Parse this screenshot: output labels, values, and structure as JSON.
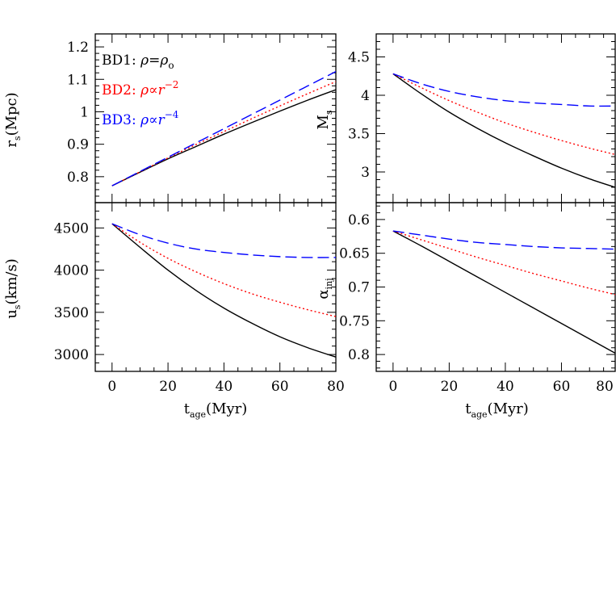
{
  "chart_data": [
    {
      "panel": "top-left",
      "type": "line",
      "ylabel_main": "r",
      "ylabel_sub": "s",
      "ylabel_unit": "(Mpc)",
      "ylim": [
        0.72,
        1.24
      ],
      "yticks": [
        0.8,
        0.9,
        1.0,
        1.1,
        1.2
      ],
      "yticklabels": [
        "0.8",
        "0.9",
        "1",
        "1.1",
        "1.2"
      ],
      "xlim": [
        -6,
        80
      ],
      "series": [
        {
          "name": "BD1",
          "color": "#000000",
          "dash": "solid",
          "x": [
            0,
            10,
            20,
            30,
            40,
            50,
            60,
            70,
            80
          ],
          "y": [
            0.772,
            0.814,
            0.855,
            0.893,
            0.931,
            0.967,
            1.002,
            1.036,
            1.068
          ]
        },
        {
          "name": "BD2",
          "color": "#ff0000",
          "dash": "dotted",
          "x": [
            0,
            10,
            20,
            30,
            40,
            50,
            60,
            70,
            80
          ],
          "y": [
            0.772,
            0.815,
            0.858,
            0.899,
            0.939,
            0.979,
            1.018,
            1.056,
            1.093
          ]
        },
        {
          "name": "BD3",
          "color": "#0000ff",
          "dash": "dashed",
          "x": [
            0,
            10,
            20,
            30,
            40,
            50,
            60,
            70,
            80
          ],
          "y": [
            0.772,
            0.816,
            0.86,
            0.904,
            0.948,
            0.992,
            1.036,
            1.08,
            1.124
          ]
        }
      ],
      "legend": [
        {
          "label": "BD1:",
          "formula": "ρ=ρ",
          "sub": "o",
          "sup": "",
          "color": "#000000"
        },
        {
          "label": "BD2:",
          "formula": "ρ∝r",
          "sub": "",
          "sup": "−2",
          "color": "#ff0000"
        },
        {
          "label": "BD3:",
          "formula": "ρ∝r",
          "sub": "",
          "sup": "−4",
          "color": "#0000ff"
        }
      ]
    },
    {
      "panel": "top-right",
      "type": "line",
      "ylabel_main": "M",
      "ylabel_sub": "s",
      "ylabel_unit": "",
      "ylim": [
        2.6,
        4.8
      ],
      "yticks": [
        3.0,
        3.5,
        4.0,
        4.5
      ],
      "yticklabels": [
        "3",
        "3.5",
        "4",
        "4.5"
      ],
      "xlim": [
        -6,
        80
      ],
      "series": [
        {
          "name": "BD1",
          "color": "#000000",
          "dash": "solid",
          "x": [
            0,
            10,
            20,
            30,
            40,
            50,
            60,
            70,
            80
          ],
          "y": [
            4.28,
            4.02,
            3.78,
            3.57,
            3.38,
            3.21,
            3.05,
            2.91,
            2.79
          ]
        },
        {
          "name": "BD2",
          "color": "#ff0000",
          "dash": "dotted",
          "x": [
            0,
            10,
            20,
            30,
            40,
            50,
            60,
            70,
            80
          ],
          "y": [
            4.28,
            4.1,
            3.93,
            3.78,
            3.64,
            3.52,
            3.41,
            3.31,
            3.22
          ]
        },
        {
          "name": "BD3",
          "color": "#0000ff",
          "dash": "dashed",
          "x": [
            0,
            10,
            20,
            30,
            40,
            50,
            60,
            70,
            80
          ],
          "y": [
            4.28,
            4.15,
            4.05,
            3.98,
            3.93,
            3.9,
            3.88,
            3.86,
            3.86
          ]
        }
      ]
    },
    {
      "panel": "bottom-left",
      "type": "line",
      "ylabel_main": "u",
      "ylabel_sub": "s",
      "ylabel_unit": "(km/s)",
      "ylim": [
        2800,
        4800
      ],
      "yticks": [
        3000,
        3500,
        4000,
        4500
      ],
      "yticklabels": [
        "3000",
        "3500",
        "4000",
        "4500"
      ],
      "xlim": [
        -6,
        80
      ],
      "xticks": [
        0,
        20,
        40,
        60,
        80
      ],
      "xticklabels": [
        "0",
        "20",
        "40",
        "60",
        "80"
      ],
      "xlabel_main": "t",
      "xlabel_sub": "age",
      "xlabel_unit": "(Myr)",
      "series": [
        {
          "name": "BD1",
          "color": "#000000",
          "dash": "solid",
          "x": [
            0,
            10,
            20,
            30,
            40,
            50,
            60,
            70,
            80
          ],
          "y": [
            4550,
            4270,
            4000,
            3760,
            3550,
            3370,
            3210,
            3080,
            2970
          ]
        },
        {
          "name": "BD2",
          "color": "#ff0000",
          "dash": "dotted",
          "x": [
            0,
            10,
            20,
            30,
            40,
            50,
            60,
            70,
            80
          ],
          "y": [
            4550,
            4330,
            4140,
            3980,
            3840,
            3720,
            3620,
            3530,
            3450
          ]
        },
        {
          "name": "BD3",
          "color": "#0000ff",
          "dash": "dashed",
          "x": [
            0,
            10,
            20,
            30,
            40,
            50,
            60,
            70,
            80
          ],
          "y": [
            4550,
            4420,
            4320,
            4250,
            4210,
            4180,
            4160,
            4150,
            4150
          ]
        }
      ]
    },
    {
      "panel": "bottom-right",
      "type": "line",
      "ylabel_main": "α",
      "ylabel_sub": "inj",
      "ylabel_unit": "",
      "yreversed": true,
      "ylim": [
        0.825,
        0.575
      ],
      "yticks": [
        0.6,
        0.65,
        0.7,
        0.75,
        0.8
      ],
      "yticklabels": [
        "0.6",
        "0.65",
        "0.7",
        "0.75",
        "0.8"
      ],
      "xlim": [
        -6,
        80
      ],
      "xticks": [
        0,
        20,
        40,
        60,
        80
      ],
      "xticklabels": [
        "0",
        "20",
        "40",
        "60",
        "80"
      ],
      "xlabel_main": "t",
      "xlabel_sub": "age",
      "xlabel_unit": "(Myr)",
      "series": [
        {
          "name": "BD1",
          "color": "#000000",
          "dash": "solid",
          "x": [
            0,
            10,
            20,
            30,
            40,
            50,
            60,
            70,
            80
          ],
          "y": [
            0.617,
            0.639,
            0.662,
            0.685,
            0.708,
            0.731,
            0.754,
            0.777,
            0.8
          ]
        },
        {
          "name": "BD2",
          "color": "#ff0000",
          "dash": "dotted",
          "x": [
            0,
            10,
            20,
            30,
            40,
            50,
            60,
            70,
            80
          ],
          "y": [
            0.617,
            0.63,
            0.643,
            0.656,
            0.668,
            0.68,
            0.691,
            0.702,
            0.712
          ]
        },
        {
          "name": "BD3",
          "color": "#0000ff",
          "dash": "dashed",
          "x": [
            0,
            10,
            20,
            30,
            40,
            50,
            60,
            70,
            80
          ],
          "y": [
            0.617,
            0.623,
            0.629,
            0.634,
            0.637,
            0.64,
            0.642,
            0.643,
            0.644
          ]
        }
      ]
    }
  ]
}
